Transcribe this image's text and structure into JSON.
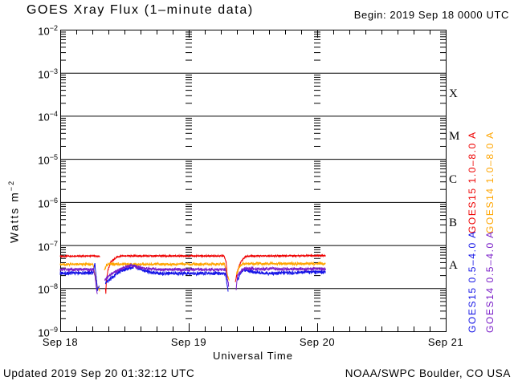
{
  "header": {
    "title": "GOES Xray Flux (1–minute data)",
    "begin": "Begin: 2019 Sep 18 0000 UTC"
  },
  "footer": {
    "updated": "Updated 2019 Sep 20 01:32:12 UTC",
    "source": "NOAA/SWPC Boulder, CO USA"
  },
  "labels": {
    "y_base": "Watts m",
    "y_sup": "−2"
  },
  "chart_data": {
    "type": "line",
    "title": "GOES Xray Flux (1-minute data)",
    "xlabel": "Universal Time",
    "ylabel": "Watts m^-2",
    "x_unit_hours_since": "2019 Sep 18 0000 UTC",
    "x_range_hours": [
      0,
      72
    ],
    "x_tick_hours": [
      0,
      24,
      48,
      72
    ],
    "x_tick_labels": [
      "Sep 18",
      "Sep 19",
      "Sep 20",
      "Sep 21"
    ],
    "x_minor_tick_hours": 3,
    "y_scale": "log",
    "y_range": [
      1e-09,
      0.01
    ],
    "y_tick_exponents": [
      -2,
      -3,
      -4,
      -5,
      -6,
      -7,
      -8,
      -9
    ],
    "grid": "solid horizontal line at each decade; log minor ticks repeated at each day boundary",
    "legend_position": "right",
    "data_end_hour": 49.55,
    "flare_classes": [
      {
        "label": "X",
        "center_exponent": -3.5
      },
      {
        "label": "M",
        "center_exponent": -4.5
      },
      {
        "label": "C",
        "center_exponent": -5.5
      },
      {
        "label": "B",
        "center_exponent": -6.5
      },
      {
        "label": "A",
        "center_exponent": -7.5
      }
    ],
    "series": [
      {
        "name": "GOES15 1.0–8.0 A",
        "color": "#ee0000",
        "noise_log10": 0.022,
        "baseline_flux": 5.6e-08,
        "segments": [
          [
            [
              0,
              5.5e-08
            ],
            [
              6.0,
              5.6e-08
            ],
            [
              7.4,
              5.5e-08
            ]
          ],
          [
            [
              8.45,
              1e-08
            ],
            [
              8.52,
              7.5e-09
            ],
            [
              8.6,
              1.4e-08
            ],
            [
              8.9,
              2.6e-08
            ],
            [
              9.5,
              4.2e-08
            ],
            [
              10.5,
              5.2e-08
            ],
            [
              11.5,
              5.6e-08
            ],
            [
              30.6,
              5.6e-08
            ],
            [
              31.0,
              4e-08
            ],
            [
              31.25,
              1.6e-08
            ]
          ],
          [
            [
              32.7,
              1.4e-08
            ],
            [
              33.2,
              2.8e-08
            ],
            [
              33.8,
              4.3e-08
            ],
            [
              34.6,
              5.4e-08
            ],
            [
              36.0,
              5.6e-08
            ],
            [
              49.55,
              5.7e-08
            ]
          ]
        ]
      },
      {
        "name": "GOES14 1.0–8.0 A",
        "color": "#ffa500",
        "noise_log10": 0.042,
        "baseline_flux": 3.6e-08,
        "segments": [
          [
            [
              0,
              3.6e-08
            ],
            [
              6.1,
              3.6e-08
            ],
            [
              6.5,
              2.1e-08
            ],
            [
              6.9,
              1.1e-08
            ],
            [
              7.35,
              8.5e-09
            ]
          ],
          [
            [
              8.25,
              2.6e-08
            ],
            [
              8.6,
              3.4e-08
            ],
            [
              9.0,
              3.6e-08
            ],
            [
              30.7,
              3.6e-08
            ],
            [
              31.1,
              2.3e-08
            ],
            [
              31.55,
              1.5e-08
            ]
          ],
          [
            [
              32.9,
              2.1e-08
            ],
            [
              33.5,
              3.2e-08
            ],
            [
              34.2,
              3.7e-08
            ],
            [
              49.55,
              3.7e-08
            ]
          ]
        ]
      },
      {
        "name": "GOES15 0.5–4.0 A",
        "color": "#1414e6",
        "noise_log10": 0.055,
        "baseline_flux": 2.2e-08,
        "segments": [
          [
            [
              0,
              2.2e-08
            ],
            [
              6.2,
              2.3e-08
            ],
            [
              6.45,
              3.9e-08
            ],
            [
              6.65,
              2.1e-08
            ],
            [
              6.95,
              9e-09
            ],
            [
              7.25,
              1.1e-08
            ]
          ],
          [
            [
              8.45,
              1.3e-08
            ],
            [
              9.5,
              1.7e-08
            ],
            [
              11.0,
              2.4e-08
            ],
            [
              13.0,
              3e-08
            ],
            [
              14.0,
              3.2e-08
            ],
            [
              15.2,
              2.7e-08
            ],
            [
              17.0,
              2.3e-08
            ],
            [
              19.0,
              2.2e-08
            ],
            [
              30.85,
              2.2e-08
            ],
            [
              31.15,
              1.3e-08
            ],
            [
              31.4,
              8e-09
            ]
          ],
          [
            [
              33.0,
              1.5e-08
            ],
            [
              33.7,
              2.3e-08
            ],
            [
              34.3,
              2.7e-08
            ],
            [
              35.5,
              2.4e-08
            ],
            [
              38.0,
              2.2e-08
            ],
            [
              49.55,
              2.4e-08
            ]
          ]
        ]
      },
      {
        "name": "GOES14 0.5–4.0 A",
        "color": "#7a1ec8",
        "noise_log10": 0.048,
        "baseline_flux": 2.7e-08,
        "segments": [
          [
            [
              0,
              2.7e-08
            ],
            [
              6.15,
              2.7e-08
            ],
            [
              6.5,
              1.9e-08
            ],
            [
              6.75,
              1e-08
            ],
            [
              6.95,
              7e-09
            ]
          ],
          [
            [
              8.3,
              1.6e-08
            ],
            [
              9.5,
              2.1e-08
            ],
            [
              11.5,
              2.9e-08
            ],
            [
              13.2,
              3.4e-08
            ],
            [
              14.3,
              3.1e-08
            ],
            [
              16.5,
              2.8e-08
            ],
            [
              19.0,
              2.7e-08
            ],
            [
              30.85,
              2.7e-08
            ],
            [
              31.2,
              1.7e-08
            ],
            [
              31.5,
              1.1e-08
            ]
          ],
          [
            [
              32.85,
              9e-09
            ],
            [
              33.1,
              1.9e-08
            ],
            [
              33.8,
              2.6e-08
            ],
            [
              34.5,
              2.9e-08
            ],
            [
              36.5,
              2.8e-08
            ],
            [
              49.55,
              2.8e-08
            ]
          ]
        ]
      }
    ]
  }
}
